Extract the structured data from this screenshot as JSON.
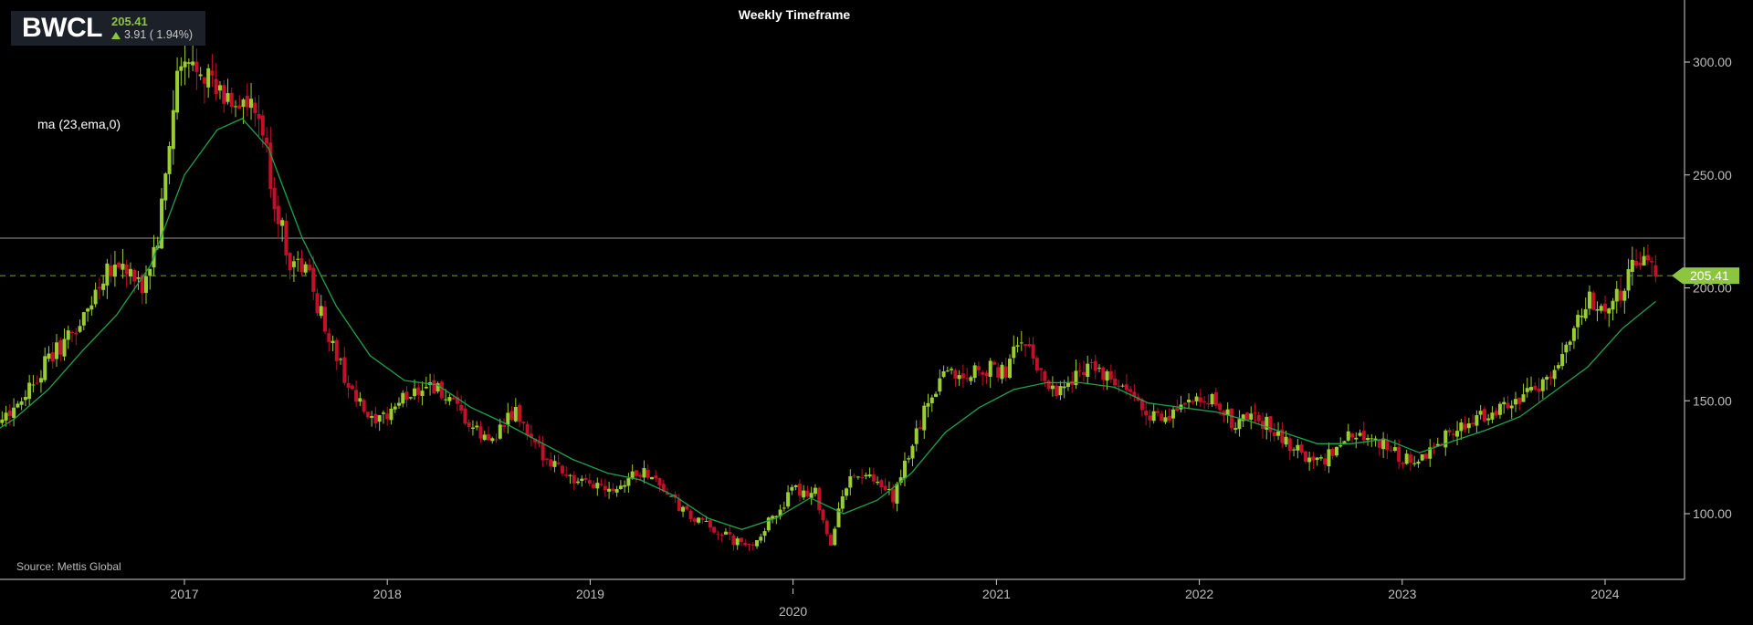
{
  "ticker": {
    "symbol": "BWCL",
    "price": "205.41",
    "change": "3.91 ( 1.94%)"
  },
  "indicator_label": "ma (23,ema,0)",
  "source": "Source: Mettis Global",
  "colors": {
    "up": "#9acd32",
    "down": "#c0102a",
    "ma_line": "#1fa34a",
    "price_tag": "#8cc63f"
  },
  "chart_data": {
    "type": "candlestick",
    "title": "Weekly Timeframe",
    "x_range": [
      "2016-01",
      "2024-06"
    ],
    "ylim": [
      70,
      325
    ],
    "y_ticks": [
      "300.00",
      "250.00",
      "200.00",
      "150.00",
      "100.00"
    ],
    "x_ticks": [
      "2017",
      "2018",
      "2019",
      "2020",
      "2021",
      "2022",
      "2023",
      "2024"
    ],
    "reference_line": 222,
    "last_price": 205.41,
    "last_price_label": "205.41",
    "ma_series": {
      "name": "ma (23,ema,0)",
      "points": [
        [
          "2016-01-04",
          133
        ],
        [
          "2016-03-01",
          142
        ],
        [
          "2016-05-01",
          155
        ],
        [
          "2016-07-01",
          172
        ],
        [
          "2016-09-01",
          188
        ],
        [
          "2016-11-01",
          210
        ],
        [
          "2017-01-01",
          250
        ],
        [
          "2017-03-01",
          270
        ],
        [
          "2017-04-15",
          275
        ],
        [
          "2017-06-01",
          262
        ],
        [
          "2017-08-01",
          222
        ],
        [
          "2017-10-01",
          192
        ],
        [
          "2017-12-01",
          170
        ],
        [
          "2018-02-01",
          159
        ],
        [
          "2018-04-01",
          157
        ],
        [
          "2018-06-01",
          147
        ],
        [
          "2018-08-01",
          140
        ],
        [
          "2018-10-01",
          132
        ],
        [
          "2018-12-01",
          124
        ],
        [
          "2019-02-01",
          118
        ],
        [
          "2019-04-01",
          115
        ],
        [
          "2019-06-01",
          108
        ],
        [
          "2019-08-01",
          98
        ],
        [
          "2019-10-01",
          93
        ],
        [
          "2019-12-01",
          98
        ],
        [
          "2020-02-01",
          107
        ],
        [
          "2020-04-01",
          100
        ],
        [
          "2020-06-01",
          106
        ],
        [
          "2020-08-01",
          118
        ],
        [
          "2020-10-01",
          136
        ],
        [
          "2020-12-01",
          147
        ],
        [
          "2021-02-01",
          155
        ],
        [
          "2021-04-01",
          158
        ],
        [
          "2021-06-01",
          158
        ],
        [
          "2021-08-01",
          156
        ],
        [
          "2021-10-01",
          149
        ],
        [
          "2021-12-01",
          147
        ],
        [
          "2022-02-01",
          145
        ],
        [
          "2022-04-01",
          141
        ],
        [
          "2022-06-01",
          136
        ],
        [
          "2022-08-01",
          131
        ],
        [
          "2022-10-01",
          131
        ],
        [
          "2022-12-01",
          133
        ],
        [
          "2023-02-01",
          127
        ],
        [
          "2023-04-01",
          132
        ],
        [
          "2023-06-01",
          137
        ],
        [
          "2023-08-01",
          143
        ],
        [
          "2023-10-01",
          154
        ],
        [
          "2023-12-01",
          165
        ],
        [
          "2024-02-01",
          182
        ],
        [
          "2024-04-01",
          194
        ]
      ]
    },
    "price_path": [
      [
        "2016-01-04",
        136
      ],
      [
        "2016-03-01",
        147
      ],
      [
        "2016-05-01",
        168
      ],
      [
        "2016-07-01",
        185
      ],
      [
        "2016-08-15",
        210
      ],
      [
        "2016-09-15",
        210
      ],
      [
        "2016-10-15",
        198
      ],
      [
        "2016-11-15",
        222
      ],
      [
        "2016-12-20",
        295
      ],
      [
        "2017-02-01",
        300
      ],
      [
        "2017-03-01",
        285
      ],
      [
        "2017-04-15",
        282
      ],
      [
        "2017-05-20",
        272
      ],
      [
        "2017-06-10",
        240
      ],
      [
        "2017-07-10",
        212
      ],
      [
        "2017-08-10",
        208
      ],
      [
        "2017-09-01",
        190
      ],
      [
        "2017-10-01",
        170
      ],
      [
        "2017-11-01",
        152
      ],
      [
        "2017-12-10",
        138
      ],
      [
        "2018-01-15",
        148
      ],
      [
        "2018-02-20",
        155
      ],
      [
        "2018-03-20",
        158
      ],
      [
        "2018-04-20",
        150
      ],
      [
        "2018-06-01",
        138
      ],
      [
        "2018-07-01",
        132
      ],
      [
        "2018-08-01",
        140
      ],
      [
        "2018-08-20",
        145
      ],
      [
        "2018-09-20",
        130
      ],
      [
        "2018-11-01",
        122
      ],
      [
        "2018-12-10",
        113
      ],
      [
        "2019-01-15",
        113
      ],
      [
        "2019-02-20",
        112
      ],
      [
        "2019-03-20",
        118
      ],
      [
        "2019-04-20",
        118
      ],
      [
        "2019-06-01",
        105
      ],
      [
        "2019-07-01",
        98
      ],
      [
        "2019-08-15",
        93
      ],
      [
        "2019-09-15",
        88
      ],
      [
        "2019-10-15",
        85
      ],
      [
        "2019-11-15",
        95
      ],
      [
        "2020-01-01",
        110
      ],
      [
        "2020-02-10",
        110
      ],
      [
        "2020-03-10",
        85
      ],
      [
        "2020-04-01",
        112
      ],
      [
        "2020-05-01",
        118
      ],
      [
        "2020-06-01",
        112
      ],
      [
        "2020-07-01",
        107
      ],
      [
        "2020-08-01",
        130
      ],
      [
        "2020-09-01",
        150
      ],
      [
        "2020-10-01",
        165
      ],
      [
        "2020-11-01",
        160
      ],
      [
        "2020-12-01",
        165
      ],
      [
        "2021-01-15",
        162
      ],
      [
        "2021-02-15",
        178
      ],
      [
        "2021-03-15",
        165
      ],
      [
        "2021-04-15",
        155
      ],
      [
        "2021-05-15",
        158
      ],
      [
        "2021-06-15",
        168
      ],
      [
        "2021-07-15",
        160
      ],
      [
        "2021-08-15",
        155
      ],
      [
        "2021-10-01",
        145
      ],
      [
        "2021-11-01",
        140
      ],
      [
        "2021-12-01",
        150
      ],
      [
        "2022-01-01",
        148
      ],
      [
        "2022-02-01",
        150
      ],
      [
        "2022-03-01",
        140
      ],
      [
        "2022-04-01",
        143
      ],
      [
        "2022-05-01",
        140
      ],
      [
        "2022-06-01",
        132
      ],
      [
        "2022-07-01",
        128
      ],
      [
        "2022-08-01",
        122
      ],
      [
        "2022-09-01",
        128
      ],
      [
        "2022-10-01",
        135
      ],
      [
        "2022-11-01",
        135
      ],
      [
        "2022-12-01",
        130
      ],
      [
        "2023-01-01",
        125
      ],
      [
        "2023-02-01",
        122
      ],
      [
        "2023-03-01",
        130
      ],
      [
        "2023-04-01",
        138
      ],
      [
        "2023-05-01",
        138
      ],
      [
        "2023-06-01",
        145
      ],
      [
        "2023-07-01",
        148
      ],
      [
        "2023-08-01",
        150
      ],
      [
        "2023-09-01",
        155
      ],
      [
        "2023-10-01",
        165
      ],
      [
        "2023-11-01",
        180
      ],
      [
        "2023-12-01",
        195
      ],
      [
        "2024-01-01",
        190
      ],
      [
        "2024-02-01",
        200
      ],
      [
        "2024-03-01",
        212
      ],
      [
        "2024-04-01",
        205.41
      ]
    ]
  }
}
